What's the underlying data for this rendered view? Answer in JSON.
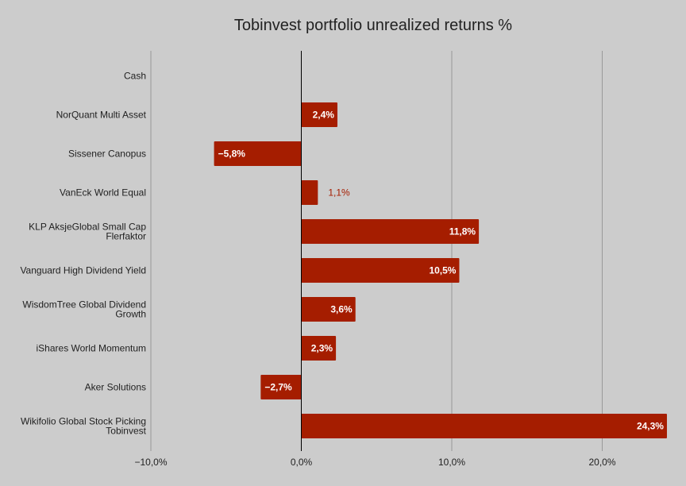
{
  "chart_data": {
    "type": "bar",
    "orientation": "horizontal",
    "title": "Tobinvest portfolio unrealized returns %",
    "xlabel": "",
    "ylabel": "",
    "categories": [
      "Cash",
      "NorQuant Multi Asset",
      "Sissener Canopus",
      "VanEck World Equal",
      "KLP AksjeGlobal Small Cap Flerfaktor",
      "Vanguard High Dividend Yield",
      "WisdomTree Global Dividend Growth",
      "iShares World Momentum",
      "Aker Solutions",
      "Wikifolio Global Stock Picking Tobinvest"
    ],
    "values": [
      0,
      2.4,
      -5.8,
      1.1,
      11.8,
      10.5,
      3.6,
      2.3,
      -2.7,
      24.3
    ],
    "data_labels": [
      "",
      "2,4%",
      "−5,8%",
      "1,1%",
      "11,8%",
      "10,5%",
      "3,6%",
      "2,3%",
      "−2,7%",
      "24,3%"
    ],
    "xlim": [
      -10,
      24.5
    ],
    "xticks": [
      -10,
      0,
      10,
      20
    ],
    "xtick_labels": [
      "−10,0%",
      "0,0%",
      "10,0%",
      "20,0%"
    ],
    "grid": true,
    "legend": "none",
    "colors": {
      "bar": "#a51d00",
      "background": "#cccccc",
      "grid": "#999999",
      "zero_line": "#000000",
      "label_inside": "#ffffff",
      "label_outside": "#a51d00",
      "text": "#222222"
    }
  }
}
